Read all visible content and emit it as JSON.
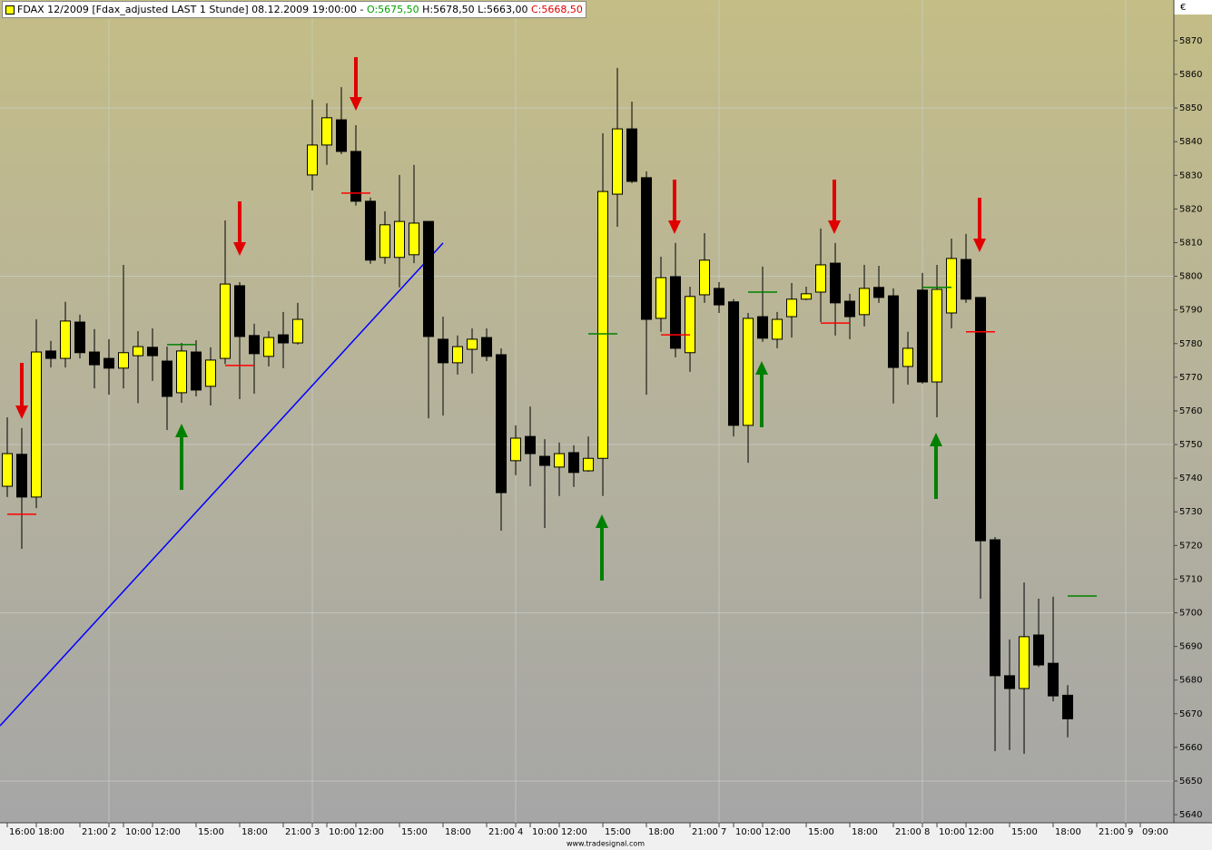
{
  "header": {
    "text": "FDAX 12/2009 [Fdax_adjusted LAST 1 Stunde] 08.12.2009 19:00:00 -",
    "open": "O:5675,50",
    "high": "H:5678,50",
    "low": "L:5663,00",
    "close": "C:5668,50"
  },
  "currency": "€",
  "footer": "www.tradesignal.com",
  "chart_data": {
    "type": "candlestick",
    "up_color": "#ffff00",
    "down_color": "#000000",
    "open": [
      5737.6,
      5747.1,
      5734.4,
      5777.8,
      5775.6,
      5786.4,
      5777.5,
      5775.6,
      5772.7,
      5776.4,
      5778.9,
      5774.8,
      5765.4,
      5777.5,
      5767.3,
      5775.6,
      5797.2,
      5782.4,
      5776.2,
      5782.6,
      5780.2,
      5830.1,
      5839.0,
      5846.5,
      5837.1,
      5822.3,
      5805.6,
      5805.6,
      5806.4,
      5816.3,
      5781.3,
      5774.3,
      5778.3,
      5781.8,
      5776.7,
      5745.2,
      5752.4,
      5746.5,
      5743.3,
      5747.6,
      5742.2,
      5745.9,
      5824.4,
      5843.8,
      5829.3,
      5787.5,
      5799.9,
      5777.3,
      5794.5,
      5796.4,
      5792.4,
      5755.7,
      5788.0,
      5781.3,
      5788.0,
      5793.2,
      5795.3,
      5803.9,
      5792.6,
      5788.6,
      5796.7,
      5794.2,
      5773.2,
      5795.9,
      5768.6,
      5789.1,
      5805.0,
      5793.7,
      5721.7,
      5681.3,
      5677.5,
      5693.4,
      5685.0,
      5675.5
    ],
    "high": [
      5758.1,
      5754.9,
      5787.2,
      5780.8,
      5792.4,
      5788.6,
      5784.3,
      5781.3,
      5803.4,
      5783.7,
      5784.5,
      5779.1,
      5780.2,
      5781.0,
      5778.9,
      5816.6,
      5798.3,
      5785.9,
      5783.7,
      5789.4,
      5792.1,
      5852.5,
      5851.4,
      5856.2,
      5844.9,
      5823.4,
      5819.3,
      5830.1,
      5833.1,
      5816.3,
      5788.0,
      5782.4,
      5784.5,
      5784.5,
      5778.6,
      5755.7,
      5761.3,
      5751.6,
      5750.6,
      5749.8,
      5752.4,
      5842.5,
      5861.9,
      5851.9,
      5831.2,
      5805.8,
      5809.9,
      5796.9,
      5812.8,
      5798.3,
      5793.2,
      5789.1,
      5802.9,
      5789.4,
      5798.0,
      5796.9,
      5814.2,
      5809.9,
      5794.8,
      5803.4,
      5803.1,
      5796.4,
      5783.5,
      5801.0,
      5803.4,
      5811.2,
      5812.6,
      5793.7,
      5722.5,
      5692.1,
      5709.0,
      5704.2,
      5704.8,
      5678.5
    ],
    "low": [
      5734.4,
      5719.0,
      5731.1,
      5772.9,
      5772.9,
      5775.6,
      5766.7,
      5764.8,
      5766.7,
      5762.3,
      5768.9,
      5754.3,
      5762.4,
      5764.3,
      5761.6,
      5773.9,
      5763.5,
      5765.1,
      5773.2,
      5772.7,
      5779.7,
      5825.5,
      5833.1,
      5836.3,
      5821.0,
      5803.7,
      5803.7,
      5796.7,
      5803.9,
      5757.8,
      5758.6,
      5770.8,
      5771.1,
      5774.8,
      5724.4,
      5740.9,
      5737.6,
      5725.2,
      5734.7,
      5737.4,
      5741.9,
      5734.7,
      5814.7,
      5827.7,
      5764.8,
      5783.5,
      5775.9,
      5771.6,
      5792.1,
      5789.1,
      5752.4,
      5744.6,
      5780.5,
      5778.6,
      5781.8,
      5792.9,
      5786.4,
      5782.4,
      5781.3,
      5785.1,
      5792.1,
      5762.2,
      5767.8,
      5768.1,
      5758.1,
      5784.5,
      5792.1,
      5704.2,
      5658.9,
      5659.2,
      5658.1,
      5683.9,
      5673.7,
      5663.0
    ],
    "close": [
      5747.3,
      5734.4,
      5777.5,
      5775.6,
      5786.7,
      5777.3,
      5773.7,
      5772.7,
      5777.3,
      5779.1,
      5776.4,
      5764.3,
      5777.8,
      5766.2,
      5775.1,
      5797.7,
      5782.1,
      5777.0,
      5781.8,
      5780.2,
      5787.2,
      5839.0,
      5847.1,
      5837.1,
      5822.3,
      5804.8,
      5815.3,
      5816.3,
      5815.8,
      5782.1,
      5774.3,
      5779.1,
      5781.3,
      5776.2,
      5735.7,
      5751.9,
      5747.3,
      5743.8,
      5747.3,
      5741.7,
      5745.9,
      5825.2,
      5843.8,
      5828.2,
      5787.2,
      5799.6,
      5778.6,
      5794.0,
      5804.8,
      5791.5,
      5755.7,
      5787.5,
      5781.6,
      5787.2,
      5793.2,
      5794.8,
      5803.4,
      5792.1,
      5788.0,
      5796.4,
      5793.7,
      5772.9,
      5778.6,
      5768.6,
      5796.1,
      5805.3,
      5793.2,
      5721.4,
      5681.3,
      5677.5,
      5692.9,
      5684.5,
      5675.3,
      5668.5
    ],
    "markers": [
      {
        "x": 1,
        "value": 5729.3,
        "color": "#ff0000"
      },
      {
        "x": 16,
        "value": 5773.5,
        "color": "#ff0000"
      },
      {
        "x": 24,
        "value": 5824.7,
        "color": "#ff0000"
      },
      {
        "x": 46,
        "value": 5782.6,
        "color": "#ff0000"
      },
      {
        "x": 57,
        "value": 5786.1,
        "color": "#ff0000"
      },
      {
        "x": 67,
        "value": 5783.5,
        "color": "#ff0000"
      },
      {
        "x": 12,
        "value": 5779.7,
        "color": "#008000"
      },
      {
        "x": 41,
        "value": 5782.9,
        "color": "#008000"
      },
      {
        "x": 52,
        "value": 5795.3,
        "color": "#008000"
      },
      {
        "x": 64,
        "value": 5796.7,
        "color": "#008000"
      },
      {
        "x": 74,
        "value": 5705.0,
        "color": "#008000"
      }
    ],
    "trendline": {
      "x": [
        -0.5,
        30
      ],
      "values": [
        5666.4,
        5809.9
      ],
      "color": "#0000ff"
    },
    "xlim": [
      -0.5,
      80.31
    ],
    "xticks": [
      {
        "value": 0,
        "label": "16:00"
      },
      {
        "value": 2,
        "label": "18:00"
      },
      {
        "value": 5,
        "label": "21:00"
      },
      {
        "value": 7,
        "label": "2"
      },
      {
        "value": 8,
        "label": "10:00"
      },
      {
        "value": 10,
        "label": "12:00"
      },
      {
        "value": 13,
        "label": "15:00"
      },
      {
        "value": 16,
        "label": "18:00"
      },
      {
        "value": 19,
        "label": "21:00"
      },
      {
        "value": 21,
        "label": "3"
      },
      {
        "value": 22,
        "label": "10:00"
      },
      {
        "value": 24,
        "label": "12:00"
      },
      {
        "value": 27,
        "label": "15:00"
      },
      {
        "value": 30,
        "label": "18:00"
      },
      {
        "value": 33,
        "label": "21:00"
      },
      {
        "value": 35,
        "label": "4"
      },
      {
        "value": 36,
        "label": "10:00"
      },
      {
        "value": 38,
        "label": "12:00"
      },
      {
        "value": 41,
        "label": "15:00"
      },
      {
        "value": 44,
        "label": "18:00"
      },
      {
        "value": 47,
        "label": "21:00"
      },
      {
        "value": 49,
        "label": "7"
      },
      {
        "value": 50,
        "label": "10:00"
      },
      {
        "value": 52,
        "label": "12:00"
      },
      {
        "value": 55,
        "label": "15:00"
      },
      {
        "value": 58,
        "label": "18:00"
      },
      {
        "value": 61,
        "label": "21:00"
      },
      {
        "value": 63,
        "label": "8"
      },
      {
        "value": 64,
        "label": "10:00"
      },
      {
        "value": 66,
        "label": "12:00"
      },
      {
        "value": 69,
        "label": "15:00"
      },
      {
        "value": 72,
        "label": "18:00"
      },
      {
        "value": 75,
        "label": "21:00"
      },
      {
        "value": 77,
        "label": "9"
      },
      {
        "value": 78,
        "label": "09:00"
      }
    ],
    "ylim": [
      5637.6,
      5882.1
    ],
    "yticks": [
      5640,
      5650,
      5660,
      5670,
      5680,
      5690,
      5700,
      5710,
      5720,
      5730,
      5740,
      5750,
      5760,
      5770,
      5780,
      5790,
      5800,
      5810,
      5820,
      5830,
      5840,
      5850,
      5860,
      5870
    ],
    "grid": true
  }
}
